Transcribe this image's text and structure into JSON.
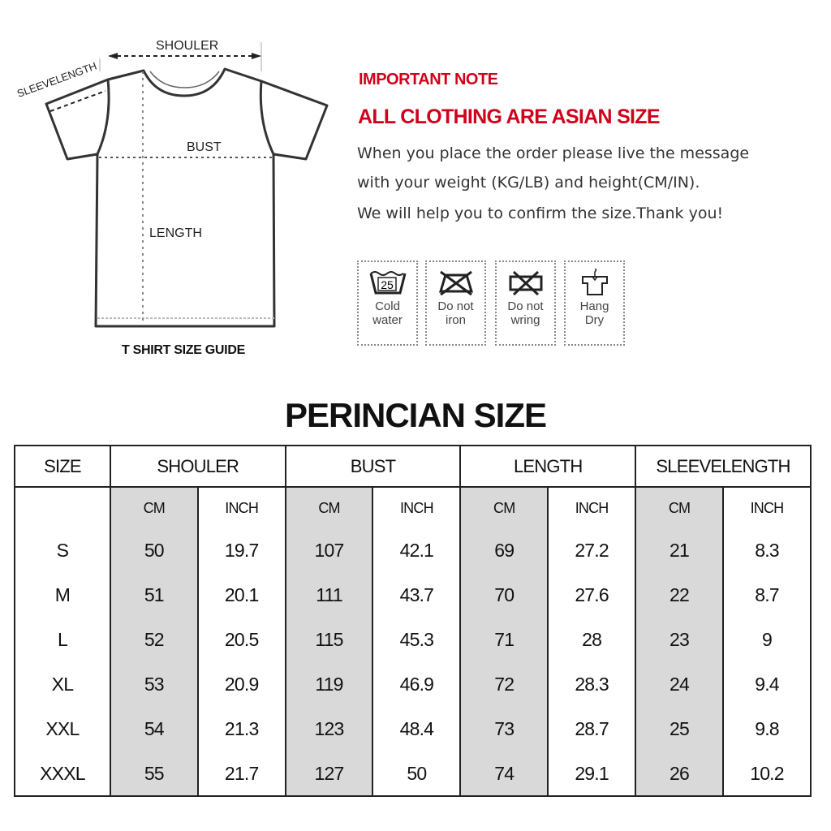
{
  "diagram": {
    "labels": {
      "shoulder": "SHOULER",
      "sleeve": "SLEEVELENGTH",
      "bust": "BUST",
      "length": "LENGTH"
    },
    "caption": "T SHIRT SIZE GUIDE"
  },
  "note": {
    "heading": "IMPORTANT NOTE",
    "subheading": "ALL CLOTHING ARE ASIAN SIZE",
    "lines": [
      "When you place the order please live the message",
      "with your weight (KG/LB) and height(CM/IN).",
      "We will help you to confirm the size.Thank you!"
    ]
  },
  "care": [
    {
      "icon": "wash-25-icon",
      "symbol": "25",
      "line1": "Cold",
      "line2": "water"
    },
    {
      "icon": "no-iron-icon",
      "line1": "Do not",
      "line2": "iron"
    },
    {
      "icon": "no-wring-icon",
      "line1": "Do not",
      "line2": "wring"
    },
    {
      "icon": "hang-dry-icon",
      "line1": "Hang",
      "line2": "Dry"
    }
  ],
  "table": {
    "title": "PERINCIAN SIZE",
    "size_header": "SIZE",
    "groups": [
      "SHOULER",
      "BUST",
      "LENGTH",
      "SLEEVELENGTH"
    ],
    "units": [
      "CM",
      "INCH"
    ],
    "rows": [
      [
        "S",
        "50",
        "19.7",
        "107",
        "42.1",
        "69",
        "27.2",
        "21",
        "8.3"
      ],
      [
        "M",
        "51",
        "20.1",
        "111",
        "43.7",
        "70",
        "27.6",
        "22",
        "8.7"
      ],
      [
        "L",
        "52",
        "20.5",
        "115",
        "45.3",
        "71",
        "28",
        "23",
        "9"
      ],
      [
        "XL",
        "53",
        "20.9",
        "119",
        "46.9",
        "72",
        "28.3",
        "24",
        "9.4"
      ],
      [
        "XXL",
        "54",
        "21.3",
        "123",
        "48.4",
        "73",
        "28.7",
        "25",
        "9.8"
      ],
      [
        "XXXL",
        "55",
        "21.7",
        "127",
        "50",
        "74",
        "29.1",
        "26",
        "10.2"
      ]
    ],
    "highlight_color": "#d9d9d9"
  },
  "colors": {
    "accent": "#d0021b"
  }
}
